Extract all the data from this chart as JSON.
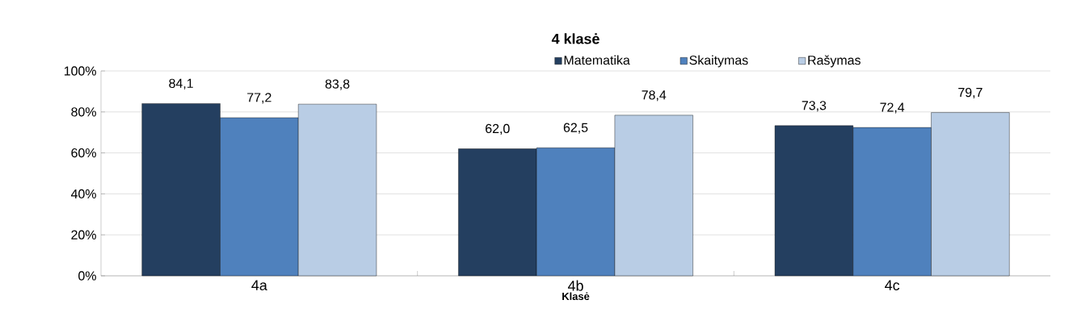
{
  "chart_data": {
    "type": "bar",
    "title": "4 klasė",
    "xlabel": "Klasė",
    "categories": [
      "4a",
      "4b",
      "4c"
    ],
    "series": [
      {
        "name": "Matematika",
        "color": "#243f60",
        "values": [
          84.1,
          62.0,
          73.3
        ],
        "value_labels": [
          "84,1",
          "62,0",
          "73,3"
        ]
      },
      {
        "name": "Skaitymas",
        "color": "#4f81bd",
        "values": [
          77.2,
          62.5,
          72.4
        ],
        "value_labels": [
          "77,2",
          "62,5",
          "72,4"
        ]
      },
      {
        "name": "Rašymas",
        "color": "#b9cde5",
        "values": [
          83.8,
          78.4,
          79.7
        ],
        "value_labels": [
          "83,8",
          "78,4",
          "79,7"
        ]
      }
    ],
    "ylim": [
      0,
      100
    ],
    "yticks": [
      {
        "value": 0,
        "label": "0%"
      },
      {
        "value": 20,
        "label": "20%"
      },
      {
        "value": 40,
        "label": "40%"
      },
      {
        "value": 60,
        "label": "60%"
      },
      {
        "value": 80,
        "label": "80%"
      },
      {
        "value": 100,
        "label": "100%"
      }
    ],
    "grid": "y",
    "legend": "top"
  }
}
